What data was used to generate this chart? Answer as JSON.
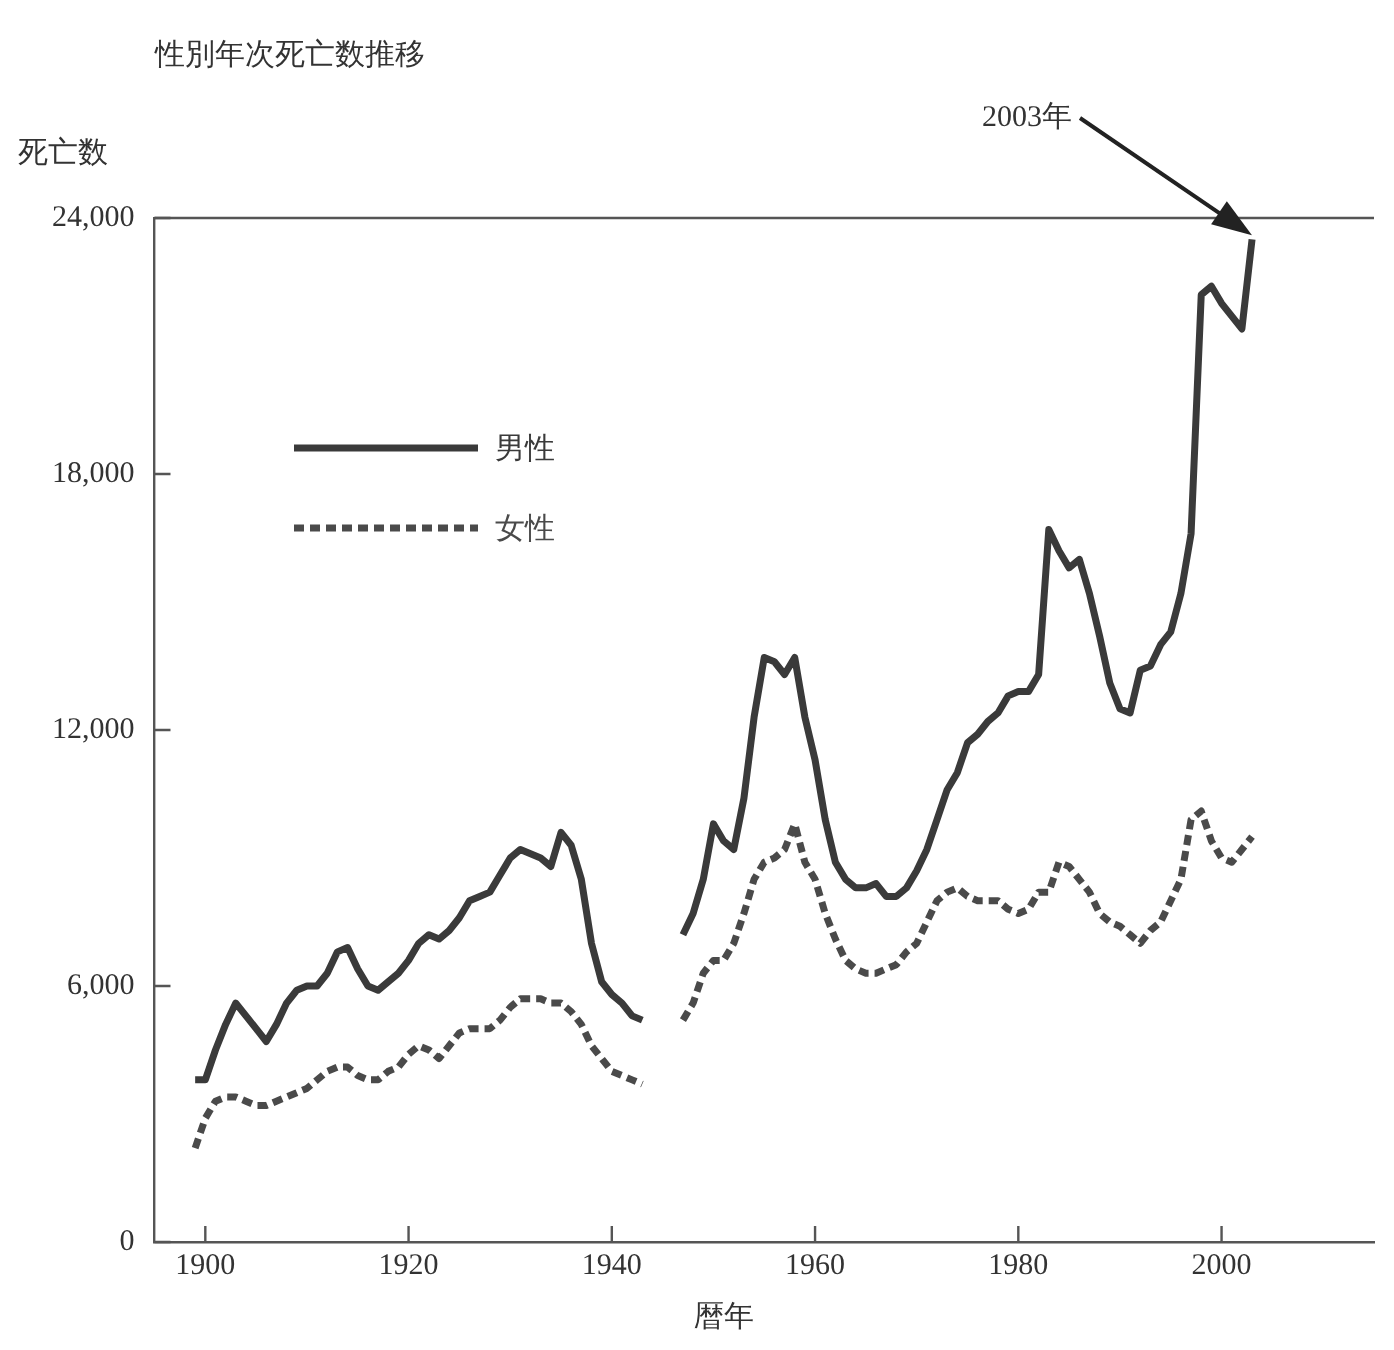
{
  "chart_data": {
    "type": "line",
    "title": "性別年次死亡数推移",
    "xlabel": "暦年",
    "ylabel": "死亡数",
    "x": [
      1899,
      1900,
      1901,
      1902,
      1903,
      1904,
      1905,
      1906,
      1907,
      1908,
      1909,
      1910,
      1911,
      1912,
      1913,
      1914,
      1915,
      1916,
      1917,
      1918,
      1919,
      1920,
      1921,
      1922,
      1923,
      1924,
      1925,
      1926,
      1927,
      1928,
      1929,
      1930,
      1931,
      1932,
      1933,
      1934,
      1935,
      1936,
      1937,
      1938,
      1939,
      1940,
      1941,
      1942,
      1943,
      1944,
      1945,
      1946,
      1947,
      1948,
      1949,
      1950,
      1951,
      1952,
      1953,
      1954,
      1955,
      1956,
      1957,
      1958,
      1959,
      1960,
      1961,
      1962,
      1963,
      1964,
      1965,
      1966,
      1967,
      1968,
      1969,
      1970,
      1971,
      1972,
      1973,
      1974,
      1975,
      1976,
      1977,
      1978,
      1979,
      1980,
      1981,
      1982,
      1983,
      1984,
      1985,
      1986,
      1987,
      1988,
      1989,
      1990,
      1991,
      1992,
      1993,
      1994,
      1995,
      1996,
      1997,
      1998,
      1999,
      2000,
      2001,
      2002,
      2003
    ],
    "series": [
      {
        "name": "男性",
        "color": "#3a3a3a",
        "line_style": "solid",
        "values": [
          3800,
          3800,
          4500,
          5100,
          5600,
          5300,
          5000,
          4700,
          5100,
          5600,
          5900,
          6000,
          6000,
          6300,
          6800,
          6900,
          6400,
          6000,
          5900,
          6100,
          6300,
          6600,
          7000,
          7200,
          7100,
          7300,
          7600,
          8000,
          8100,
          8200,
          8600,
          9000,
          9200,
          9100,
          9000,
          8800,
          9600,
          9300,
          8500,
          7000,
          6100,
          5800,
          5600,
          5300,
          5200,
          null,
          null,
          null,
          7200,
          7700,
          8500,
          9800,
          9400,
          9200,
          10400,
          12300,
          13700,
          13600,
          13300,
          13700,
          12300,
          11300,
          9900,
          8900,
          8500,
          8300,
          8300,
          8400,
          8100,
          8100,
          8300,
          8700,
          9200,
          9900,
          10600,
          11000,
          11700,
          11900,
          12200,
          12400,
          12800,
          12900,
          12900,
          13300,
          16700,
          16200,
          15800,
          16000,
          15200,
          14200,
          13100,
          12500,
          12400,
          13400,
          13500,
          14000,
          14300,
          15200,
          16600,
          22200,
          22400,
          22000,
          21700,
          21400,
          23500
        ]
      },
      {
        "name": "女性",
        "color": "#4a4a4a",
        "line_style": "dotted",
        "values": [
          2200,
          2900,
          3300,
          3400,
          3400,
          3300,
          3200,
          3200,
          3300,
          3400,
          3500,
          3600,
          3800,
          4000,
          4100,
          4100,
          3900,
          3800,
          3800,
          4000,
          4100,
          4400,
          4600,
          4500,
          4300,
          4600,
          4900,
          5000,
          5000,
          5000,
          5200,
          5500,
          5700,
          5700,
          5700,
          5600,
          5600,
          5400,
          5100,
          4600,
          4300,
          4000,
          3900,
          3800,
          3700,
          null,
          null,
          null,
          5200,
          5600,
          6300,
          6600,
          6600,
          7000,
          7700,
          8500,
          8900,
          9000,
          9200,
          9800,
          8900,
          8500,
          7700,
          7100,
          6600,
          6400,
          6300,
          6300,
          6400,
          6500,
          6800,
          7000,
          7500,
          8000,
          8200,
          8300,
          8100,
          8000,
          8000,
          8000,
          7800,
          7700,
          7800,
          8200,
          8200,
          8900,
          8800,
          8500,
          8200,
          7700,
          7500,
          7400,
          7200,
          7000,
          7300,
          7500,
          8000,
          8500,
          9900,
          10100,
          9400,
          9000,
          8900,
          9200,
          9500
        ]
      }
    ],
    "xlim": [
      1895,
      2015
    ],
    "xticks": [
      1900,
      1920,
      1940,
      1960,
      1980,
      2000
    ],
    "ylim": [
      0,
      24000
    ],
    "yticks": [
      0,
      {
        "value": 6000,
        "label": "6,000"
      },
      {
        "value": 12000,
        "label": "12,000"
      },
      {
        "value": 18000,
        "label": "18,000"
      },
      {
        "value": 24000,
        "label": "24,000"
      }
    ],
    "grid": false,
    "legend": "top left",
    "annotations": [
      "2003年"
    ]
  }
}
